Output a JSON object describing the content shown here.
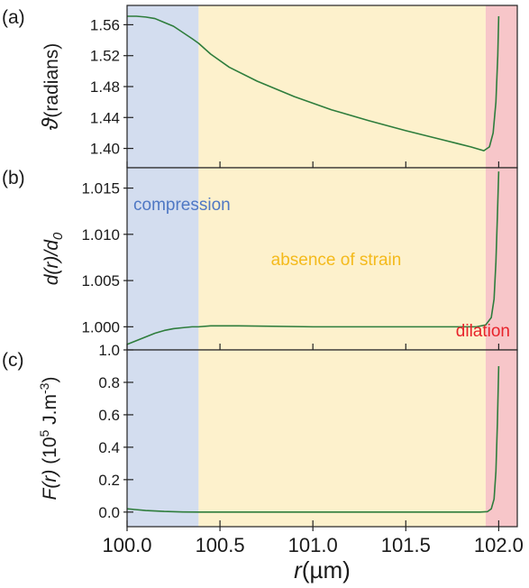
{
  "chart_data": {
    "type": "line",
    "shared_x": {
      "label_var": "r",
      "label_unit": "(µm)",
      "range": [
        100.0,
        102.1
      ],
      "ticks": [
        100.0,
        100.5,
        101.0,
        101.5,
        102.0
      ],
      "tick_labels": [
        "100.0",
        "100.5",
        "101.0",
        "101.5",
        "102.0"
      ]
    },
    "regions": [
      {
        "key": "compression",
        "label": "compression",
        "x": [
          100.0,
          100.385
        ],
        "color": "#d3ddef",
        "label_color": "#4f78c4"
      },
      {
        "key": "absence",
        "label": "absence of strain",
        "x": [
          100.385,
          101.93
        ],
        "color": "#fdf1cc",
        "label_color": "#f4ba1c"
      },
      {
        "key": "dilation",
        "label": "dilation",
        "x": [
          101.93,
          102.1
        ],
        "color": "#f7c6c9",
        "label_color": "#e8232b"
      }
    ],
    "line_color": "#2e7d3c",
    "panels": [
      {
        "panel_label": "(a)",
        "ylabel_symbol": "ϑ",
        "ylabel_rest": "(radians)",
        "ylim": [
          1.375,
          1.585
        ],
        "yticks": [
          1.4,
          1.44,
          1.48,
          1.52,
          1.56
        ],
        "ytick_labels": [
          "1.40",
          "1.44",
          "1.48",
          "1.52",
          "1.56"
        ],
        "x": [
          100.0,
          100.05,
          100.1,
          100.15,
          100.2,
          100.25,
          100.3,
          100.35,
          100.385,
          100.45,
          100.55,
          100.7,
          100.9,
          101.1,
          101.3,
          101.5,
          101.7,
          101.85,
          101.92,
          101.95,
          101.97,
          101.985,
          101.995,
          102.0
        ],
        "y": [
          1.571,
          1.571,
          1.57,
          1.568,
          1.563,
          1.558,
          1.55,
          1.542,
          1.536,
          1.522,
          1.505,
          1.487,
          1.467,
          1.45,
          1.436,
          1.423,
          1.411,
          1.402,
          1.397,
          1.402,
          1.42,
          1.46,
          1.52,
          1.571
        ]
      },
      {
        "panel_label": "(b)",
        "ylabel_symbol": "d(r)/d",
        "ylabel_sub": "0",
        "ylim": [
          0.9975,
          1.0172
        ],
        "yticks": [
          1.0,
          1.005,
          1.01,
          1.015
        ],
        "ytick_labels": [
          "1.000",
          "1.005",
          "1.010",
          "1.015"
        ],
        "x": [
          100.0,
          100.05,
          100.1,
          100.15,
          100.2,
          100.25,
          100.3,
          100.35,
          100.385,
          100.45,
          100.6,
          101.0,
          101.5,
          101.88,
          101.93,
          101.96,
          101.975,
          101.985,
          101.993,
          102.0
        ],
        "y": [
          0.9981,
          0.9985,
          0.9989,
          0.9993,
          0.9996,
          0.9998,
          0.9999,
          1.0,
          1.0,
          1.0001,
          1.0001,
          1.0,
          1.0,
          1.0,
          1.0002,
          1.001,
          1.003,
          1.007,
          1.012,
          1.0168
        ]
      },
      {
        "panel_label": "(c)",
        "ylabel_symbol": "F(r)",
        "ylabel_rest": " (10",
        "ylabel_sup": "5",
        "ylabel_rest2": " J.m",
        "ylabel_sup2": "-3",
        "ylabel_end": ")",
        "ylim": [
          -0.09,
          1.0
        ],
        "yticks": [
          0.0,
          0.2,
          0.4,
          0.6,
          0.8,
          1.0
        ],
        "ytick_labels": [
          "0.0",
          "0.2",
          "0.4",
          "0.6",
          "0.8",
          "1.0"
        ],
        "x": [
          100.0,
          100.05,
          100.1,
          100.2,
          100.3,
          100.385,
          100.6,
          101.0,
          101.5,
          101.9,
          101.94,
          101.96,
          101.975,
          101.985,
          101.993,
          102.0
        ],
        "y": [
          0.02,
          0.015,
          0.01,
          0.004,
          0.001,
          0.0,
          0.0,
          0.0,
          0.0,
          0.0,
          0.003,
          0.02,
          0.08,
          0.25,
          0.55,
          0.9
        ]
      }
    ]
  }
}
